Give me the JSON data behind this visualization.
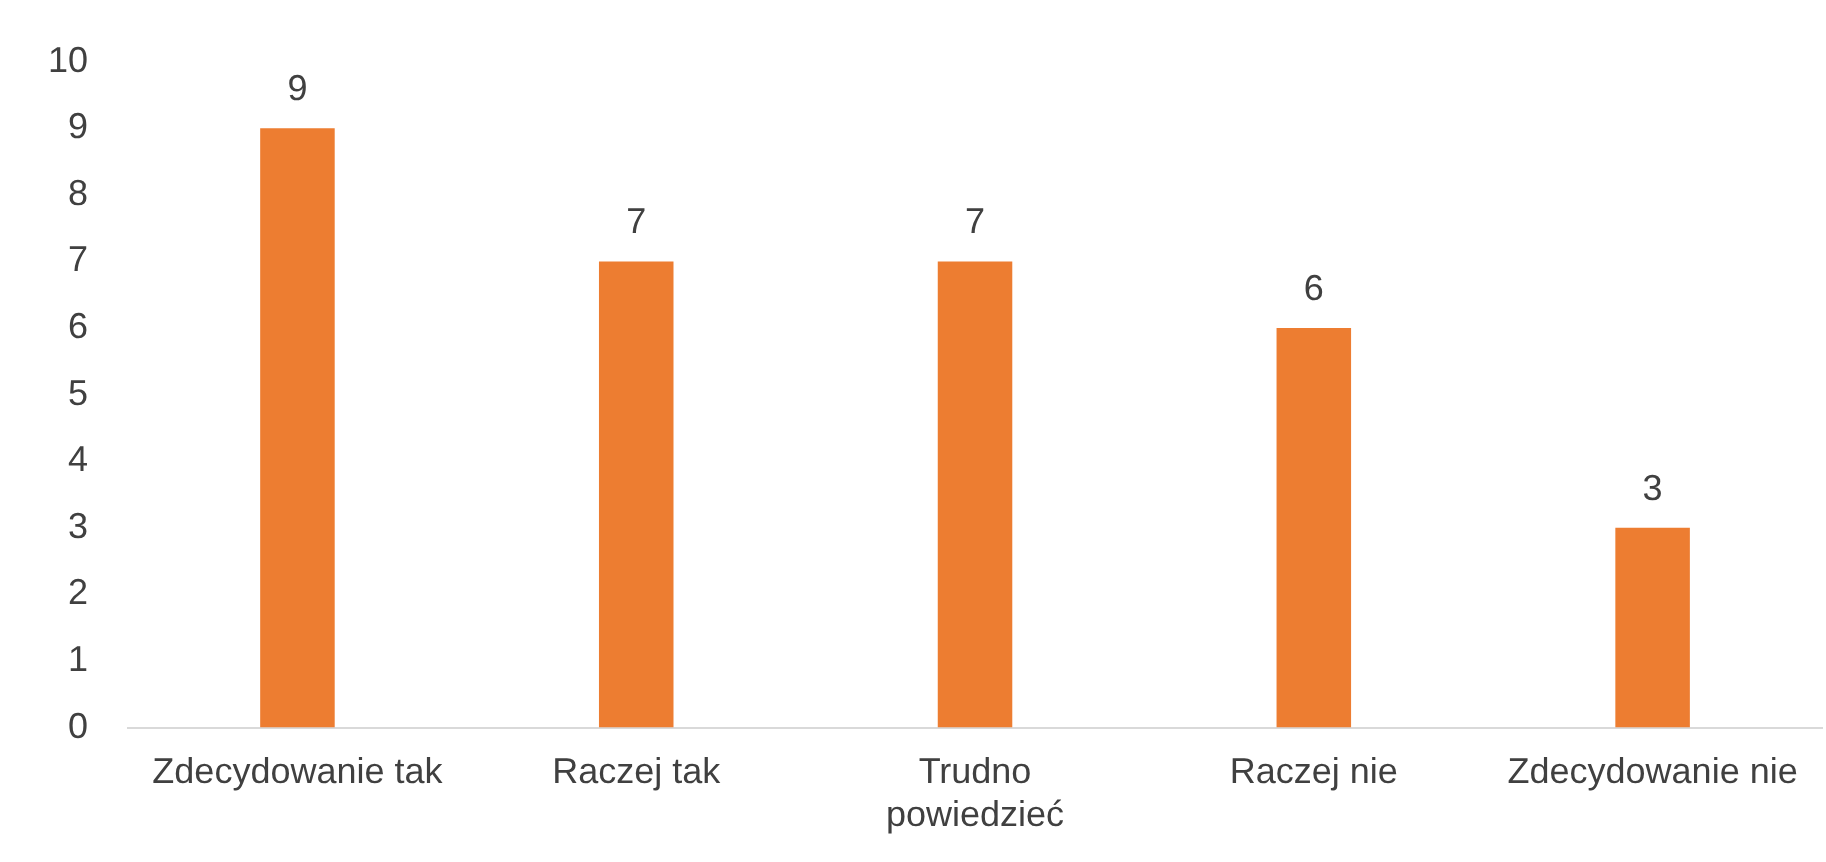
{
  "chart_data": {
    "type": "bar",
    "categories": [
      "Zdecydowanie tak",
      "Raczej tak",
      "Trudno powiedzieć",
      "Raczej nie",
      "Zdecydowanie nie"
    ],
    "values": [
      9,
      7,
      7,
      6,
      3
    ],
    "color": "#ed7d31",
    "ylim": [
      0,
      10
    ],
    "yticks": [
      0,
      1,
      2,
      3,
      4,
      5,
      6,
      7,
      8,
      9,
      10
    ],
    "grid": false,
    "data_labels": true
  }
}
